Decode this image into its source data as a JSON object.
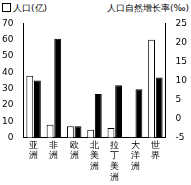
{
  "chart_data": {
    "type": "bar",
    "categories": [
      "亚洲",
      "非洲",
      "欧洲",
      "北美洲",
      "拉丁美洲",
      "大洋洲",
      "世界"
    ],
    "ylim": [
      0,
      70
    ],
    "yticks": [
      0,
      10,
      20,
      30,
      40,
      50,
      60,
      70
    ],
    "y2lim": [
      -5,
      25
    ],
    "y2ticks": [
      -5,
      0,
      5,
      10,
      15,
      20,
      25
    ],
    "grid": false,
    "series": [
      {
        "name": "人口(亿)",
        "color": "#ffffff",
        "values": [
          38,
          8,
          7,
          5,
          6,
          0.3,
          60
        ]
      },
      {
        "name": "人口自然增长率(‰)",
        "color": "#000000",
        "axis": "y2",
        "values": [
          10,
          21,
          -2,
          6.5,
          8.8,
          7.7,
          10.8
        ]
      }
    ]
  }
}
